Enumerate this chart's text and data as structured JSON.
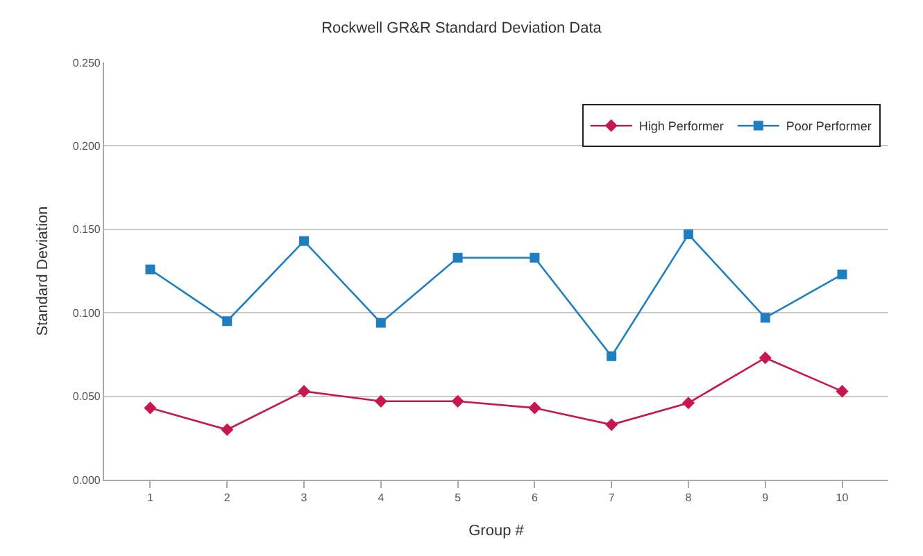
{
  "chart_data": {
    "type": "line",
    "title": "Rockwell GR&R Standard Deviation Data",
    "xlabel": "Group #",
    "ylabel": "Standard Deviation",
    "categories": [
      "1",
      "2",
      "3",
      "4",
      "5",
      "6",
      "7",
      "8",
      "9",
      "10"
    ],
    "series": [
      {
        "name": "High Performer",
        "color": "#c8174f",
        "marker": "diamond",
        "values": [
          0.043,
          0.03,
          0.053,
          0.047,
          0.047,
          0.043,
          0.033,
          0.046,
          0.073,
          0.053
        ]
      },
      {
        "name": "Poor Performer",
        "color": "#1f7ec0",
        "marker": "square",
        "values": [
          0.126,
          0.095,
          0.143,
          0.094,
          0.133,
          0.133,
          0.074,
          0.147,
          0.097,
          0.123
        ]
      }
    ],
    "ylim": [
      0,
      0.25
    ],
    "yticks": [
      {
        "value": 0,
        "label": "0.000"
      },
      {
        "value": 0.05,
        "label": "0.050"
      },
      {
        "value": 0.1,
        "label": "0.100"
      },
      {
        "value": 0.15,
        "label": "0.150"
      },
      {
        "value": 0.2,
        "label": "0.200"
      },
      {
        "value": 0.25,
        "label": "0.250"
      }
    ],
    "grid": "y",
    "legend": "top right",
    "line_style": "solid"
  }
}
